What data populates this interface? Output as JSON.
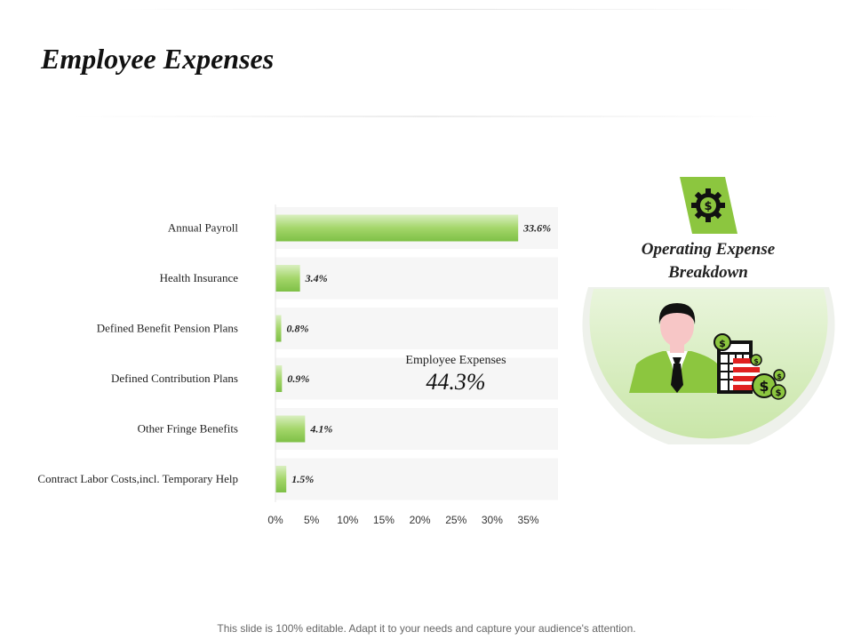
{
  "title": "Employee Expenses",
  "summary": {
    "label": "Employee Expenses",
    "value": "44.3%"
  },
  "breakdown": {
    "title_line1": "Operating Expense",
    "title_line2": "Breakdown",
    "icons": [
      "gear-dollar-icon",
      "businessman-icon",
      "calculator-icon",
      "dollar-coins-icon"
    ]
  },
  "footer": "This slide is 100% editable. Adapt it to your needs and capture your audience's attention.",
  "colors": {
    "accent": "#8cc63f",
    "accent_light": "#d7ecbf",
    "row_bg": "#f6f6f6"
  },
  "chart_data": {
    "type": "bar",
    "orientation": "horizontal",
    "categories": [
      "Annual Payroll",
      "Health Insurance",
      "Defined Benefit Pension Plans",
      "Defined Contribution Plans",
      "Other Fringe Benefits",
      "Contract Labor Costs,incl. Temporary Help"
    ],
    "values": [
      33.6,
      3.4,
      0.8,
      0.9,
      4.1,
      1.5
    ],
    "value_labels": [
      "33.6%",
      "3.4%",
      "0.8%",
      "0.9%",
      "4.1%",
      "1.5%"
    ],
    "x_ticks": [
      "0%",
      "5%",
      "10%",
      "15%",
      "20%",
      "25%",
      "30%",
      "35%"
    ],
    "xlim": [
      0,
      35
    ],
    "grid": false
  }
}
